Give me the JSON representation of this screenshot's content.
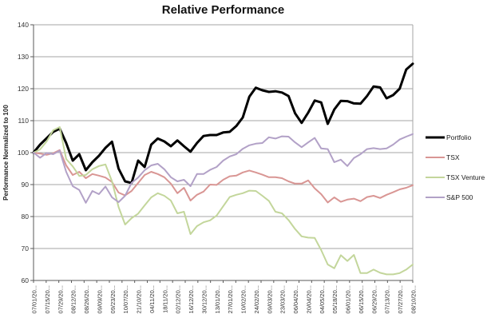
{
  "chart_data": {
    "type": "line",
    "title": "Relative Performance",
    "ylabel": "Performance Normalized to 100",
    "ylim": [
      60,
      140
    ],
    "y_ticks": [
      140,
      130,
      120,
      110,
      100,
      90,
      80,
      70,
      60
    ],
    "grid": "horizontal",
    "legend_position": "right",
    "x_tick_label_rotation": 90,
    "points_per_label": 2,
    "x_labels": [
      "07/01/20...",
      "07/15/20...",
      "07/29/20...",
      "08/12/20...",
      "08/26/20...",
      "09/09/20...",
      "09/23/20...",
      "10/07/20...",
      "21/10/20...",
      "04/11/20...",
      "18/11/20...",
      "02/12/20...",
      "16/12/20...",
      "30/12/20...",
      "13/01/20...",
      "27/01/20...",
      "10/02/20...",
      "24/02/20...",
      "09/03/20...",
      "23/03/20...",
      "06/04/20...",
      "20/04/20...",
      "04/05/20...",
      "05/18/20...",
      "06/01/20...",
      "06/15/20...",
      "06/29/20...",
      "07/13/20...",
      "07/27/20...",
      "08/10/20..."
    ],
    "colors": {
      "axis": "#595959",
      "grid": "#A6A6A6",
      "tick_text": "#333333",
      "legend_text": "#1A1A1A"
    },
    "series": [
      {
        "name": "Portfolio",
        "color": "#000000",
        "width": 3,
        "values": [
          100,
          102.5,
          104.5,
          106.5,
          107.5,
          103,
          97.5,
          99.5,
          94.5,
          97,
          99,
          101.5,
          103.4,
          95,
          91,
          90.5,
          97.5,
          95.5,
          102.5,
          104.4,
          103.5,
          102,
          103.8,
          102,
          100.3,
          103,
          105.2,
          105.5,
          105.5,
          106.3,
          106.5,
          108.3,
          111,
          117.5,
          120.3,
          119.5,
          119,
          119.2,
          118.8,
          117.7,
          112.3,
          109.3,
          112.5,
          116.3,
          115.7,
          109,
          113.5,
          116.2,
          116.1,
          115.4,
          115.3,
          117.7,
          120.7,
          120.4,
          117,
          118,
          120,
          126,
          127.8
        ]
      },
      {
        "name": "TSX",
        "color": "#D99694",
        "width": 2,
        "values": [
          100,
          99.7,
          99.3,
          99.8,
          100.8,
          96,
          93,
          94,
          92,
          93.3,
          92.8,
          92.2,
          90.8,
          87.5,
          86.6,
          88,
          90.5,
          93,
          94,
          93.3,
          92.3,
          90.3,
          87.3,
          89,
          85,
          86.8,
          87.8,
          90,
          89.9,
          91.5,
          92.6,
          92.8,
          93.8,
          94.4,
          93.8,
          93.1,
          92.3,
          92.3,
          92,
          91,
          90.3,
          90.3,
          91.3,
          88.8,
          87,
          84.4,
          86,
          84.6,
          85.3,
          85.6,
          84.8,
          86.1,
          86.5,
          85.8,
          86.8,
          87.6,
          88.5,
          89,
          89.8
        ]
      },
      {
        "name": "TSX Venture",
        "color": "#C3D69B",
        "width": 2,
        "values": [
          100,
          101,
          103.5,
          107,
          108,
          98,
          95.7,
          92.7,
          93,
          94.8,
          95.8,
          96.3,
          91,
          83,
          77.5,
          79.5,
          80.9,
          83.5,
          86,
          87.3,
          86.5,
          85,
          81,
          81.5,
          74.5,
          77,
          78.2,
          78.8,
          80.3,
          83.2,
          86.1,
          86.8,
          87.3,
          88.1,
          88,
          86.5,
          84.9,
          81.5,
          81,
          78.9,
          76.1,
          73.8,
          73.4,
          73.3,
          69.5,
          65,
          63.8,
          67.9,
          66.1,
          68,
          62.3,
          62.3,
          63.4,
          62.4,
          61.9,
          61.9,
          62.3,
          63.4,
          65
        ]
      },
      {
        "name": "S&P 500",
        "color": "#B2A1C7",
        "width": 2,
        "values": [
          100,
          98.4,
          99.9,
          99.5,
          100.6,
          94,
          89.5,
          88.3,
          84.3,
          88,
          87,
          89.4,
          86,
          84.5,
          86.5,
          90.5,
          92.2,
          94.5,
          96,
          96.5,
          94.8,
          92.3,
          91,
          91.5,
          89.5,
          93.3,
          93.3,
          94.6,
          95.5,
          97.5,
          98.8,
          99.5,
          101.2,
          102.3,
          102.8,
          103,
          104.8,
          104.4,
          105.1,
          105,
          103.2,
          101.7,
          103.2,
          104.6,
          101.3,
          101.1,
          97,
          97.8,
          95.8,
          98.3,
          99.5,
          101.1,
          101.4,
          101.1,
          101.3,
          102.5,
          104.1,
          105,
          105.8
        ]
      }
    ]
  }
}
